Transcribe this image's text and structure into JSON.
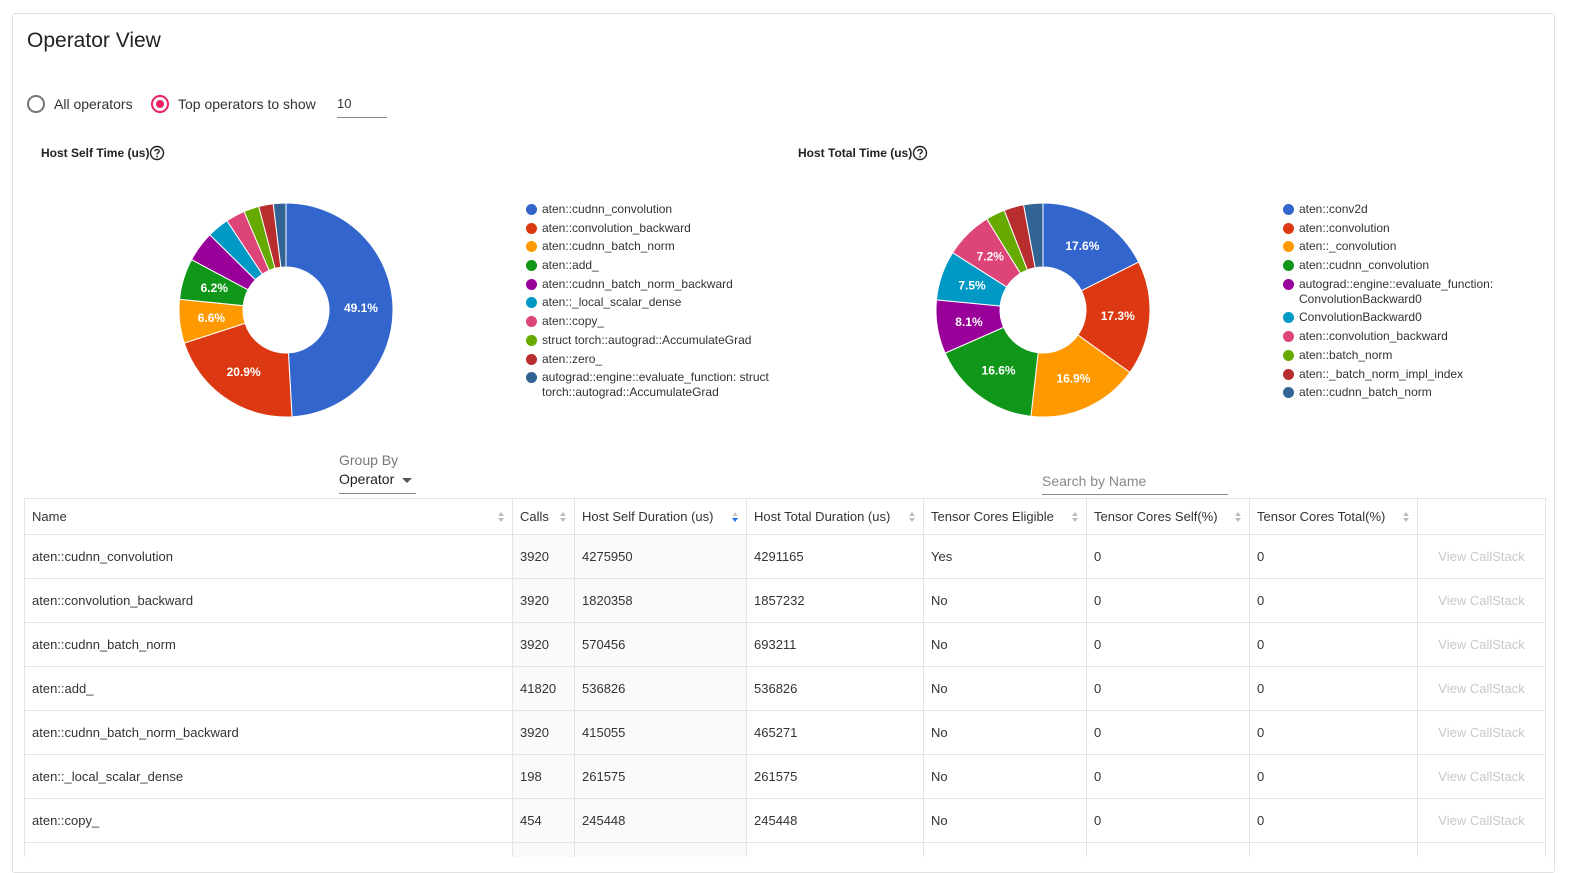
{
  "header": {
    "title": "Operator View"
  },
  "controls": {
    "all_operators": "All operators",
    "top_operators": "Top operators to show",
    "top_count": "10",
    "group_by_label": "Group By",
    "group_by_value": "Operator",
    "search_placeholder": "Search by Name"
  },
  "chart_data": [
    {
      "type": "pie",
      "title": "Host Self Time (us)",
      "categories": [
        "aten::cudnn_convolution",
        "aten::convolution_backward",
        "aten::cudnn_batch_norm",
        "aten::add_",
        "aten::cudnn_batch_norm_backward",
        "aten::_local_scalar_dense",
        "aten::copy_",
        "struct torch::autograd::AccumulateGrad",
        "aten::zero_",
        "autograd::engine::evaluate_function: struct torch::autograd::AccumulateGrad"
      ],
      "values": [
        49.1,
        20.9,
        6.6,
        6.2,
        4.6,
        3.3,
        2.9,
        2.3,
        2.2,
        1.9
      ],
      "value_labels": [
        "49.1%",
        "20.9%",
        "6.6%",
        "6.2%",
        null,
        null,
        null,
        null,
        null,
        null
      ],
      "colors": [
        "#3366cc",
        "#dc3912",
        "#ff9900",
        "#109618",
        "#990099",
        "#0099c6",
        "#dd4477",
        "#66aa00",
        "#b82e2e",
        "#316395"
      ]
    },
    {
      "type": "pie",
      "title": "Host Total Time (us)",
      "categories": [
        "aten::conv2d",
        "aten::convolution",
        "aten::_convolution",
        "aten::cudnn_convolution",
        "autograd::engine::evaluate_function: ConvolutionBackward0",
        "ConvolutionBackward0",
        "aten::convolution_backward",
        "aten::batch_norm",
        "aten::_batch_norm_impl_index",
        "aten::cudnn_batch_norm"
      ],
      "values": [
        17.6,
        17.3,
        16.9,
        16.6,
        8.1,
        7.5,
        7.2,
        2.9,
        3.0,
        2.9
      ],
      "value_labels": [
        "17.6%",
        "17.3%",
        "16.9%",
        "16.6%",
        "8.1%",
        "7.5%",
        "7.2%",
        null,
        null,
        null
      ],
      "colors": [
        "#3366cc",
        "#dc3912",
        "#ff9900",
        "#109618",
        "#990099",
        "#0099c6",
        "#dd4477",
        "#66aa00",
        "#b82e2e",
        "#316395"
      ]
    }
  ],
  "table": {
    "columns": [
      "Name",
      "Calls",
      "Host Self Duration (us)",
      "Host Total Duration (us)",
      "Tensor Cores Eligible",
      "Tensor Cores Self(%)",
      "Tensor Cores Total(%)"
    ],
    "rows": [
      [
        "aten::cudnn_convolution",
        3920,
        4275950,
        4291165,
        "Yes",
        0,
        0,
        "View CallStack"
      ],
      [
        "aten::convolution_backward",
        3920,
        1820358,
        1857232,
        "No",
        0,
        0,
        "View CallStack"
      ],
      [
        "aten::cudnn_batch_norm",
        3920,
        570456,
        693211,
        "No",
        0,
        0,
        "View CallStack"
      ],
      [
        "aten::add_",
        41820,
        536826,
        536826,
        "No",
        0,
        0,
        "View CallStack"
      ],
      [
        "aten::cudnn_batch_norm_backward",
        3920,
        415055,
        465271,
        "No",
        0,
        0,
        "View CallStack"
      ],
      [
        "aten::_local_scalar_dense",
        198,
        261575,
        261575,
        "No",
        0,
        0,
        "View CallStack"
      ],
      [
        "aten::copy_",
        454,
        245448,
        245448,
        "No",
        0,
        0,
        "View CallStack"
      ]
    ]
  }
}
